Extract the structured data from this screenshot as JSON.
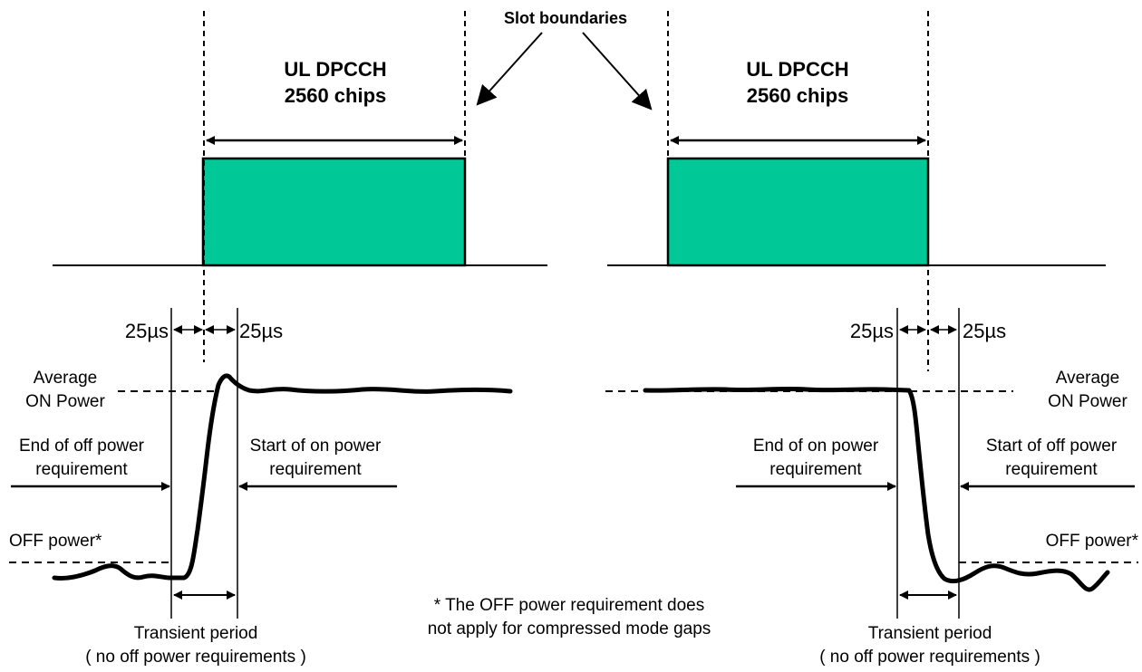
{
  "colors": {
    "slot_fill": "#00C896",
    "line": "#000000",
    "background": "#FFFFFF"
  },
  "slot_boundaries_label": "Slot boundaries",
  "left_slot": {
    "line1": "UL DPCCH",
    "line2": "2560 chips"
  },
  "right_slot": {
    "line1": "UL DPCCH",
    "line2": "2560 chips"
  },
  "timing": {
    "left_before": "25µs",
    "left_after": "25µs",
    "right_before": "25µs",
    "right_after": "25µs"
  },
  "left_panel": {
    "avg_on_line1": "Average",
    "avg_on_line2": "ON Power",
    "end_req_line1": "End of off power",
    "end_req_line2": "requirement",
    "start_req_line1": "Start of on power",
    "start_req_line2": "requirement",
    "off_power": "OFF power*",
    "transient_line1": "Transient period",
    "transient_line2": "( no off power requirements )"
  },
  "right_panel": {
    "avg_on_line1": "Average",
    "avg_on_line2": "ON Power",
    "end_req_line1": "End of on power",
    "end_req_line2": "requirement",
    "start_req_line1": "Start of off power",
    "start_req_line2": "requirement",
    "off_power": "OFF power*",
    "transient_line1": "Transient period",
    "transient_line2": "( no off power requirements )"
  },
  "footnote": {
    "line1": "* The OFF power requirement does",
    "line2": "not apply for compressed mode gaps"
  }
}
